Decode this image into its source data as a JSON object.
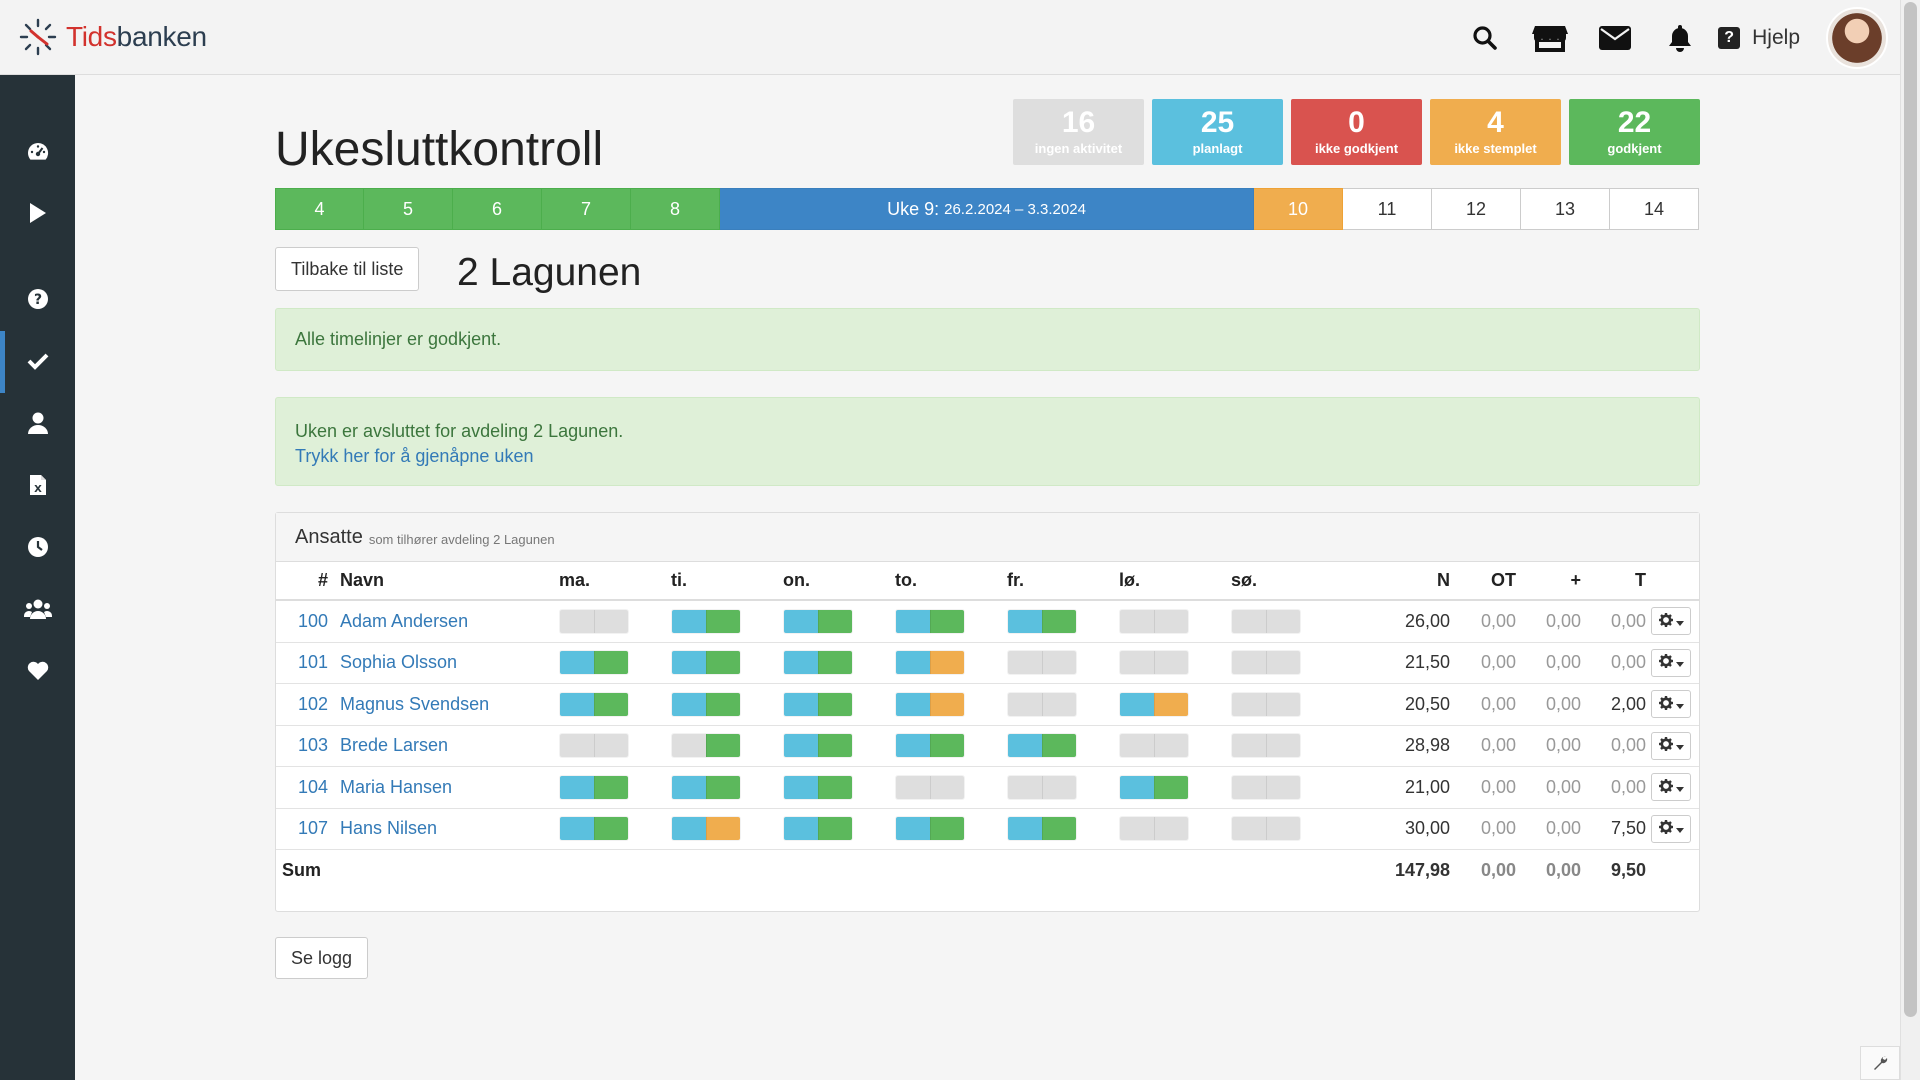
{
  "app": {
    "logo_prefix": "Tids",
    "logo_suffix": "banken"
  },
  "topbar": {
    "icons": [
      "search-icon",
      "store-icon",
      "envelope-icon",
      "bell-icon"
    ],
    "help_label": "Hjelp"
  },
  "sidebar": {
    "items": [
      "dashboard-icon",
      "play-icon",
      "question-icon",
      "check-icon",
      "user-icon",
      "excel-file-icon",
      "clock-icon",
      "users-icon",
      "heart-icon"
    ],
    "active": "check-icon"
  },
  "page": {
    "title": "Ukesluttkontroll"
  },
  "stats": [
    {
      "value": "16",
      "label": "ingen aktivitet",
      "color": "#dedede"
    },
    {
      "value": "25",
      "label": "planlagt",
      "color": "#5bc0de"
    },
    {
      "value": "0",
      "label": "ikke godkjent",
      "color": "#d9534f"
    },
    {
      "value": "4",
      "label": "ikke stemplet",
      "color": "#f0ad4e"
    },
    {
      "value": "22",
      "label": "godkjent",
      "color": "#5cb85c"
    }
  ],
  "weeks": {
    "before": [
      "4",
      "5",
      "6",
      "7",
      "8"
    ],
    "current_label": "Uke 9:",
    "current_dates": "26.2.2024 – 3.3.2024",
    "after": [
      "10",
      "11",
      "12",
      "13",
      "14"
    ]
  },
  "buttons": {
    "back": "Tilbake til liste",
    "log": "Se logg"
  },
  "department": {
    "title": "2 Lagunen"
  },
  "alerts": {
    "approved": "Alle timelinjer er godkjent.",
    "closed": "Uken er avsluttet for avdeling 2 Lagunen.",
    "reopen_link": "Trykk her for å gjenåpne uken"
  },
  "panel": {
    "title": "Ansatte",
    "subtitle": "som tilhører avdeling 2 Lagunen"
  },
  "table": {
    "headers": {
      "num": "#",
      "name": "Navn",
      "days": [
        "ma.",
        "ti.",
        "on.",
        "to.",
        "fr.",
        "lø.",
        "sø."
      ],
      "n": "N",
      "ot": "OT",
      "plus": "+",
      "t": "T"
    },
    "rows": [
      {
        "num": "100",
        "name": "Adam Andersen",
        "days": [
          [
            "grey",
            "grey"
          ],
          [
            "blue",
            "green"
          ],
          [
            "blue",
            "green"
          ],
          [
            "blue",
            "green"
          ],
          [
            "blue",
            "green"
          ],
          [
            "grey",
            "grey"
          ],
          [
            "grey",
            "grey"
          ]
        ],
        "n": "26,00",
        "ot": "0,00",
        "plus": "0,00",
        "t": "0,00"
      },
      {
        "num": "101",
        "name": "Sophia Olsson",
        "days": [
          [
            "blue",
            "green"
          ],
          [
            "blue",
            "green"
          ],
          [
            "blue",
            "green"
          ],
          [
            "blue",
            "orange"
          ],
          [
            "grey",
            "grey"
          ],
          [
            "grey",
            "grey"
          ],
          [
            "grey",
            "grey"
          ]
        ],
        "n": "21,50",
        "ot": "0,00",
        "plus": "0,00",
        "t": "0,00"
      },
      {
        "num": "102",
        "name": "Magnus Svendsen",
        "days": [
          [
            "blue",
            "green"
          ],
          [
            "blue",
            "green"
          ],
          [
            "blue",
            "green"
          ],
          [
            "blue",
            "orange"
          ],
          [
            "grey",
            "grey"
          ],
          [
            "blue",
            "orange"
          ],
          [
            "grey",
            "grey"
          ]
        ],
        "n": "20,50",
        "ot": "0,00",
        "plus": "0,00",
        "t": "2,00"
      },
      {
        "num": "103",
        "name": "Brede Larsen",
        "days": [
          [
            "grey",
            "grey"
          ],
          [
            "grey",
            "green"
          ],
          [
            "blue",
            "green"
          ],
          [
            "blue",
            "green"
          ],
          [
            "blue",
            "green"
          ],
          [
            "grey",
            "grey"
          ],
          [
            "grey",
            "grey"
          ]
        ],
        "n": "28,98",
        "ot": "0,00",
        "plus": "0,00",
        "t": "0,00"
      },
      {
        "num": "104",
        "name": "Maria Hansen",
        "days": [
          [
            "blue",
            "green"
          ],
          [
            "blue",
            "green"
          ],
          [
            "blue",
            "green"
          ],
          [
            "grey",
            "grey"
          ],
          [
            "grey",
            "grey"
          ],
          [
            "blue",
            "green"
          ],
          [
            "grey",
            "grey"
          ]
        ],
        "n": "21,00",
        "ot": "0,00",
        "plus": "0,00",
        "t": "0,00"
      },
      {
        "num": "107",
        "name": "Hans Nilsen",
        "days": [
          [
            "blue",
            "green"
          ],
          [
            "blue",
            "orange"
          ],
          [
            "blue",
            "green"
          ],
          [
            "blue",
            "green"
          ],
          [
            "blue",
            "green"
          ],
          [
            "grey",
            "grey"
          ],
          [
            "grey",
            "grey"
          ]
        ],
        "n": "30,00",
        "ot": "0,00",
        "plus": "0,00",
        "t": "7,50"
      }
    ],
    "sum": {
      "label": "Sum",
      "n": "147,98",
      "ot": "0,00",
      "plus": "0,00",
      "t": "9,50"
    }
  }
}
